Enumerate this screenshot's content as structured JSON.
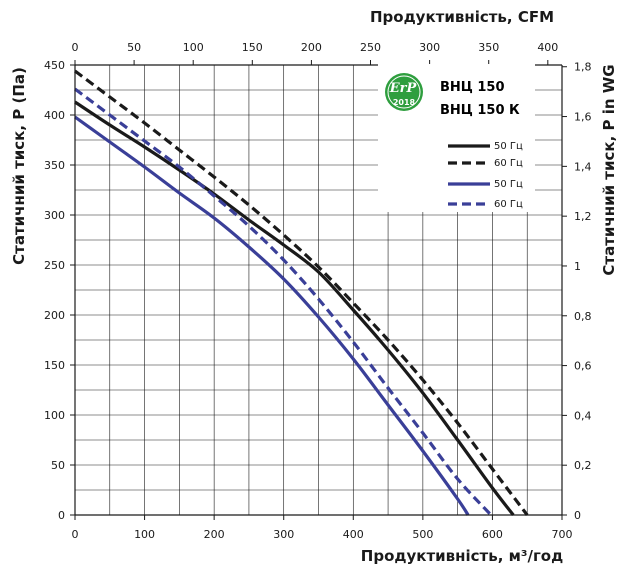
{
  "chart_data": {
    "type": "line",
    "x_bottom": {
      "label": "Продуктивність, м³/год",
      "range": [
        0,
        700
      ],
      "ticks": [
        0,
        100,
        200,
        300,
        400,
        500,
        600,
        700
      ]
    },
    "x_top": {
      "label": "Продуктивність, CFM",
      "range": [
        0,
        412
      ],
      "ticks": [
        0,
        50,
        100,
        150,
        200,
        250,
        300,
        350,
        400
      ]
    },
    "y_left": {
      "label": "Статичний тиск, P (Па)",
      "range": [
        0,
        450
      ],
      "ticks": [
        0,
        50,
        100,
        150,
        200,
        250,
        300,
        350,
        400,
        450
      ]
    },
    "y_right": {
      "label": "Статичний тиск, P in WG",
      "range": [
        0,
        1.807
      ],
      "ticks": [
        "0",
        "0,2",
        "0,4",
        "0,6",
        "0,8",
        "1",
        "1,2",
        "1,4",
        "1,6",
        "1,8"
      ],
      "tick_values": [
        0,
        0.2,
        0.4,
        0.6,
        0.8,
        1.0,
        1.2,
        1.4,
        1.6,
        1.8
      ]
    },
    "grid": true,
    "legend": {
      "position": "top-right",
      "models": [
        {
          "name": "ВНЦ 150",
          "color": "#1a1a1a"
        },
        {
          "name": "ВНЦ 150 К",
          "color": "#3a3f98"
        }
      ]
    },
    "badge": {
      "text": "ErP",
      "year": "2018",
      "color": "#2e9e3e"
    },
    "series": [
      {
        "name": "50 Гц",
        "model": "ВНЦ 150",
        "color": "#1a1a1a",
        "dash": false,
        "x": [
          0,
          50,
          100,
          150,
          200,
          250,
          300,
          350,
          400,
          450,
          500,
          550,
          600,
          630
        ],
        "y": [
          413,
          390,
          368,
          345,
          321,
          295,
          270,
          243,
          205,
          165,
          122,
          75,
          27,
          0
        ]
      },
      {
        "name": "60 Гц",
        "model": "ВНЦ 150",
        "color": "#1a1a1a",
        "dash": true,
        "x": [
          0,
          50,
          100,
          150,
          200,
          250,
          300,
          350,
          400,
          450,
          500,
          550,
          600,
          650
        ],
        "y": [
          444,
          418,
          392,
          365,
          338,
          310,
          280,
          248,
          212,
          175,
          135,
          92,
          46,
          0
        ]
      },
      {
        "name": "50 Гц",
        "model": "ВНЦ 150 К",
        "color": "#3a3f98",
        "dash": false,
        "x": [
          0,
          50,
          100,
          150,
          200,
          250,
          300,
          350,
          400,
          450,
          500,
          550,
          565
        ],
        "y": [
          398,
          373,
          348,
          322,
          297,
          268,
          236,
          198,
          156,
          110,
          64,
          16,
          0
        ]
      },
      {
        "name": "60 Гц",
        "model": "ВНЦ 150 К",
        "color": "#3a3f98",
        "dash": true,
        "x": [
          0,
          50,
          100,
          150,
          200,
          250,
          300,
          350,
          400,
          450,
          500,
          550,
          598
        ],
        "y": [
          426,
          400,
          374,
          348,
          319,
          289,
          255,
          216,
          173,
          127,
          82,
          36,
          0
        ]
      }
    ]
  }
}
